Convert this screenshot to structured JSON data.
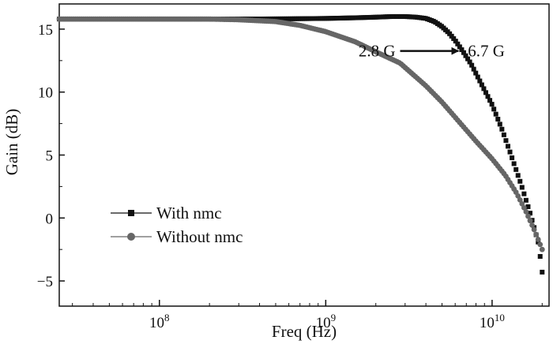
{
  "chart_data": {
    "type": "line",
    "xlabel": "Freq (Hz)",
    "ylabel": "Gain (dB)",
    "x_scale": "log",
    "xlim": [
      25000000,
      22000000000
    ],
    "ylim": [
      -7,
      17
    ],
    "x_ticks": [
      {
        "base": "10",
        "exp": "8",
        "value": 100000000
      },
      {
        "base": "10",
        "exp": "9",
        "value": 1000000000
      },
      {
        "base": "10",
        "exp": "10",
        "value": 10000000000
      }
    ],
    "y_ticks": [
      15,
      10,
      5,
      0,
      -5
    ],
    "grid": false,
    "legend_position": "bottom-left",
    "series": [
      {
        "name": "With nmc",
        "color": "#111111",
        "marker": "square",
        "points": [
          [
            25000000,
            15.8
          ],
          [
            100000000,
            15.8
          ],
          [
            300000000,
            15.8
          ],
          [
            600000000,
            15.82
          ],
          [
            1000000000,
            15.85
          ],
          [
            1500000000,
            15.9
          ],
          [
            2000000000,
            15.95
          ],
          [
            2500000000,
            16.0
          ],
          [
            3000000000,
            16.0
          ],
          [
            3500000000,
            15.95
          ],
          [
            4000000000,
            15.85
          ],
          [
            4500000000,
            15.6
          ],
          [
            5000000000,
            15.2
          ],
          [
            5500000000,
            14.7
          ],
          [
            6000000000,
            14.1
          ],
          [
            6700000000,
            13.2
          ],
          [
            7500000000,
            12.2
          ],
          [
            8500000000,
            10.8
          ],
          [
            10000000000,
            9.0
          ],
          [
            11500000000,
            7.0
          ],
          [
            13000000000,
            5.0
          ],
          [
            15000000000,
            2.6
          ],
          [
            17000000000,
            0.3
          ],
          [
            19000000000,
            -2.0
          ],
          [
            20000000000,
            -4.3
          ]
        ]
      },
      {
        "name": "Without nmc",
        "color": "#666666",
        "marker": "circle",
        "points": [
          [
            25000000,
            15.8
          ],
          [
            100000000,
            15.8
          ],
          [
            200000000,
            15.8
          ],
          [
            300000000,
            15.75
          ],
          [
            500000000,
            15.6
          ],
          [
            700000000,
            15.3
          ],
          [
            1000000000,
            14.8
          ],
          [
            1500000000,
            14.0
          ],
          [
            2000000000,
            13.2
          ],
          [
            2800000000,
            12.3
          ],
          [
            4000000000,
            10.5
          ],
          [
            5000000000,
            9.2
          ],
          [
            6000000000,
            8.0
          ],
          [
            8000000000,
            6.1
          ],
          [
            10000000000,
            4.7
          ],
          [
            12000000000,
            3.4
          ],
          [
            14000000000,
            2.0
          ],
          [
            16000000000,
            0.5
          ],
          [
            18000000000,
            -1.0
          ],
          [
            20000000000,
            -2.5
          ]
        ]
      }
    ],
    "annotations": [
      {
        "label": "2.8 G",
        "from_x": 2800000000,
        "to_x": 6700000000,
        "y": 13.2
      },
      {
        "label": "6.7 G"
      }
    ]
  }
}
